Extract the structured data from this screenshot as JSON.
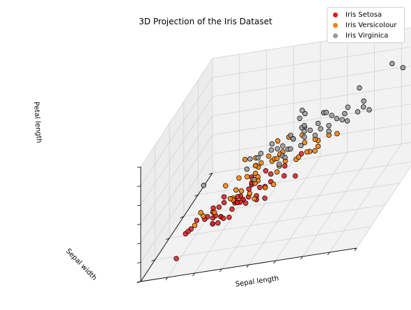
{
  "chart_data": {
    "type": "scatter",
    "title": "3D Projection of the Iris Dataset",
    "xlabel": "Sepal length",
    "ylabel": "Sepal width",
    "zlabel": "Petal length",
    "xlim": [
      4.0,
      8.0
    ],
    "ylim": [
      2.0,
      4.5
    ],
    "zlim": [
      1.0,
      7.0
    ],
    "grid": true,
    "legend_position": "top-right",
    "series": [
      {
        "name": "Iris Setosa",
        "color": "#e41a1c",
        "points": [
          [
            5.1,
            3.5,
            1.4
          ],
          [
            4.9,
            3.0,
            1.4
          ],
          [
            4.7,
            3.2,
            1.3
          ],
          [
            4.6,
            3.1,
            1.5
          ],
          [
            5.0,
            3.6,
            1.4
          ],
          [
            5.4,
            3.9,
            1.7
          ],
          [
            4.6,
            3.4,
            1.4
          ],
          [
            5.0,
            3.4,
            1.5
          ],
          [
            4.4,
            2.9,
            1.4
          ],
          [
            4.9,
            3.1,
            1.5
          ],
          [
            5.4,
            3.7,
            1.5
          ],
          [
            4.8,
            3.4,
            1.6
          ],
          [
            4.8,
            3.0,
            1.4
          ],
          [
            4.3,
            3.0,
            1.1
          ],
          [
            5.8,
            4.0,
            1.2
          ],
          [
            5.7,
            4.4,
            1.5
          ],
          [
            5.4,
            3.9,
            1.3
          ],
          [
            5.1,
            3.5,
            1.4
          ],
          [
            5.7,
            3.8,
            1.7
          ],
          [
            5.1,
            3.8,
            1.5
          ],
          [
            5.4,
            3.4,
            1.7
          ],
          [
            5.1,
            3.7,
            1.5
          ],
          [
            4.6,
            3.6,
            1.0
          ],
          [
            5.1,
            3.3,
            1.7
          ],
          [
            4.8,
            3.4,
            1.9
          ],
          [
            5.0,
            3.0,
            1.6
          ],
          [
            5.0,
            3.4,
            1.6
          ],
          [
            5.2,
            3.5,
            1.5
          ],
          [
            5.2,
            3.4,
            1.4
          ],
          [
            4.7,
            3.2,
            1.6
          ],
          [
            4.8,
            3.1,
            1.6
          ],
          [
            5.4,
            3.4,
            1.5
          ],
          [
            5.2,
            4.1,
            1.5
          ],
          [
            5.5,
            4.2,
            1.4
          ],
          [
            4.9,
            3.1,
            1.5
          ],
          [
            5.0,
            3.2,
            1.2
          ],
          [
            5.5,
            3.5,
            1.3
          ],
          [
            4.4,
            3.0,
            1.3
          ],
          [
            5.1,
            3.4,
            1.5
          ],
          [
            5.0,
            3.5,
            1.3
          ],
          [
            4.5,
            2.3,
            1.3
          ],
          [
            4.4,
            3.2,
            1.3
          ],
          [
            5.0,
            3.5,
            1.6
          ],
          [
            5.1,
            3.8,
            1.9
          ],
          [
            4.8,
            3.0,
            1.4
          ],
          [
            5.1,
            3.8,
            1.6
          ],
          [
            4.6,
            3.2,
            1.4
          ],
          [
            5.3,
            3.7,
            1.5
          ],
          [
            5.0,
            3.3,
            1.4
          ]
        ]
      },
      {
        "name": "Iris Versicolour",
        "color": "#ff7f00",
        "points": [
          [
            7.0,
            3.2,
            4.7
          ],
          [
            6.4,
            3.2,
            4.5
          ],
          [
            6.9,
            3.1,
            4.9
          ],
          [
            5.5,
            2.3,
            4.0
          ],
          [
            6.5,
            2.8,
            4.6
          ],
          [
            5.7,
            2.8,
            4.5
          ],
          [
            6.3,
            3.3,
            4.7
          ],
          [
            4.9,
            2.4,
            3.3
          ],
          [
            6.6,
            2.9,
            4.6
          ],
          [
            5.2,
            2.7,
            3.9
          ],
          [
            5.0,
            2.0,
            3.5
          ],
          [
            5.9,
            3.0,
            4.2
          ],
          [
            6.0,
            2.2,
            4.0
          ],
          [
            6.1,
            2.9,
            4.7
          ],
          [
            5.6,
            2.9,
            3.6
          ],
          [
            6.7,
            3.1,
            4.4
          ],
          [
            5.6,
            3.0,
            4.5
          ],
          [
            5.8,
            2.7,
            4.1
          ],
          [
            6.2,
            2.2,
            4.5
          ],
          [
            5.6,
            2.5,
            3.9
          ],
          [
            5.9,
            3.2,
            4.8
          ],
          [
            6.1,
            2.8,
            4.0
          ],
          [
            6.3,
            2.5,
            4.9
          ],
          [
            6.1,
            2.8,
            4.7
          ],
          [
            6.4,
            2.9,
            4.3
          ],
          [
            6.6,
            3.0,
            4.4
          ],
          [
            6.8,
            2.8,
            4.8
          ],
          [
            6.7,
            3.0,
            5.0
          ],
          [
            6.0,
            2.9,
            4.5
          ],
          [
            5.7,
            2.6,
            3.5
          ],
          [
            5.5,
            2.4,
            3.8
          ],
          [
            5.5,
            2.4,
            3.7
          ],
          [
            5.8,
            2.7,
            3.9
          ],
          [
            6.0,
            2.7,
            5.1
          ],
          [
            5.4,
            3.0,
            4.5
          ],
          [
            6.0,
            3.4,
            4.5
          ],
          [
            6.7,
            3.1,
            4.7
          ],
          [
            6.3,
            2.3,
            4.4
          ],
          [
            5.6,
            3.0,
            4.1
          ],
          [
            5.5,
            2.5,
            4.0
          ],
          [
            5.5,
            2.6,
            4.4
          ],
          [
            6.1,
            3.0,
            4.6
          ],
          [
            5.8,
            2.6,
            4.0
          ],
          [
            5.0,
            2.3,
            3.3
          ],
          [
            5.6,
            2.7,
            4.2
          ],
          [
            5.7,
            3.0,
            4.2
          ],
          [
            5.7,
            2.9,
            4.2
          ],
          [
            6.2,
            2.9,
            4.3
          ],
          [
            5.1,
            2.5,
            3.0
          ],
          [
            5.7,
            2.8,
            4.1
          ]
        ]
      },
      {
        "name": "Iris Virginica",
        "color": "#999999",
        "points": [
          [
            6.3,
            3.3,
            6.0
          ],
          [
            5.8,
            2.7,
            5.1
          ],
          [
            7.1,
            3.0,
            5.9
          ],
          [
            6.3,
            2.9,
            5.6
          ],
          [
            6.5,
            3.0,
            5.8
          ],
          [
            7.6,
            3.0,
            6.6
          ],
          [
            4.9,
            2.5,
            4.5
          ],
          [
            7.3,
            2.9,
            6.3
          ],
          [
            6.7,
            2.5,
            5.8
          ],
          [
            7.2,
            3.6,
            6.1
          ],
          [
            6.5,
            3.2,
            5.1
          ],
          [
            6.4,
            2.7,
            5.3
          ],
          [
            6.8,
            3.0,
            5.5
          ],
          [
            5.7,
            2.5,
            5.0
          ],
          [
            5.8,
            2.8,
            5.1
          ],
          [
            6.4,
            3.2,
            5.3
          ],
          [
            6.5,
            3.0,
            5.5
          ],
          [
            7.7,
            3.8,
            6.7
          ],
          [
            7.7,
            2.6,
            6.9
          ],
          [
            6.0,
            2.2,
            5.0
          ],
          [
            6.9,
            3.2,
            5.7
          ],
          [
            5.6,
            2.8,
            4.9
          ],
          [
            7.7,
            2.8,
            6.7
          ],
          [
            6.3,
            2.7,
            4.9
          ],
          [
            6.7,
            3.3,
            5.7
          ],
          [
            7.2,
            3.2,
            6.0
          ],
          [
            6.2,
            2.8,
            4.8
          ],
          [
            6.1,
            3.0,
            4.9
          ],
          [
            6.4,
            2.8,
            5.6
          ],
          [
            7.2,
            3.0,
            5.8
          ],
          [
            7.4,
            2.8,
            6.1
          ],
          [
            7.9,
            3.8,
            6.4
          ],
          [
            6.4,
            2.8,
            5.6
          ],
          [
            6.3,
            2.8,
            5.1
          ],
          [
            6.1,
            2.6,
            5.6
          ],
          [
            7.7,
            3.0,
            6.1
          ],
          [
            6.3,
            3.4,
            5.6
          ],
          [
            6.4,
            3.1,
            5.5
          ],
          [
            6.0,
            3.0,
            4.8
          ],
          [
            6.9,
            3.1,
            5.4
          ],
          [
            6.7,
            3.1,
            5.6
          ],
          [
            6.9,
            3.1,
            5.1
          ],
          [
            6.8,
            3.2,
            5.9
          ],
          [
            6.7,
            3.3,
            5.7
          ],
          [
            6.7,
            3.0,
            5.2
          ],
          [
            6.3,
            2.5,
            5.0
          ],
          [
            6.5,
            3.0,
            5.2
          ],
          [
            6.2,
            3.4,
            5.4
          ],
          [
            5.9,
            3.0,
            5.1
          ]
        ]
      }
    ]
  }
}
